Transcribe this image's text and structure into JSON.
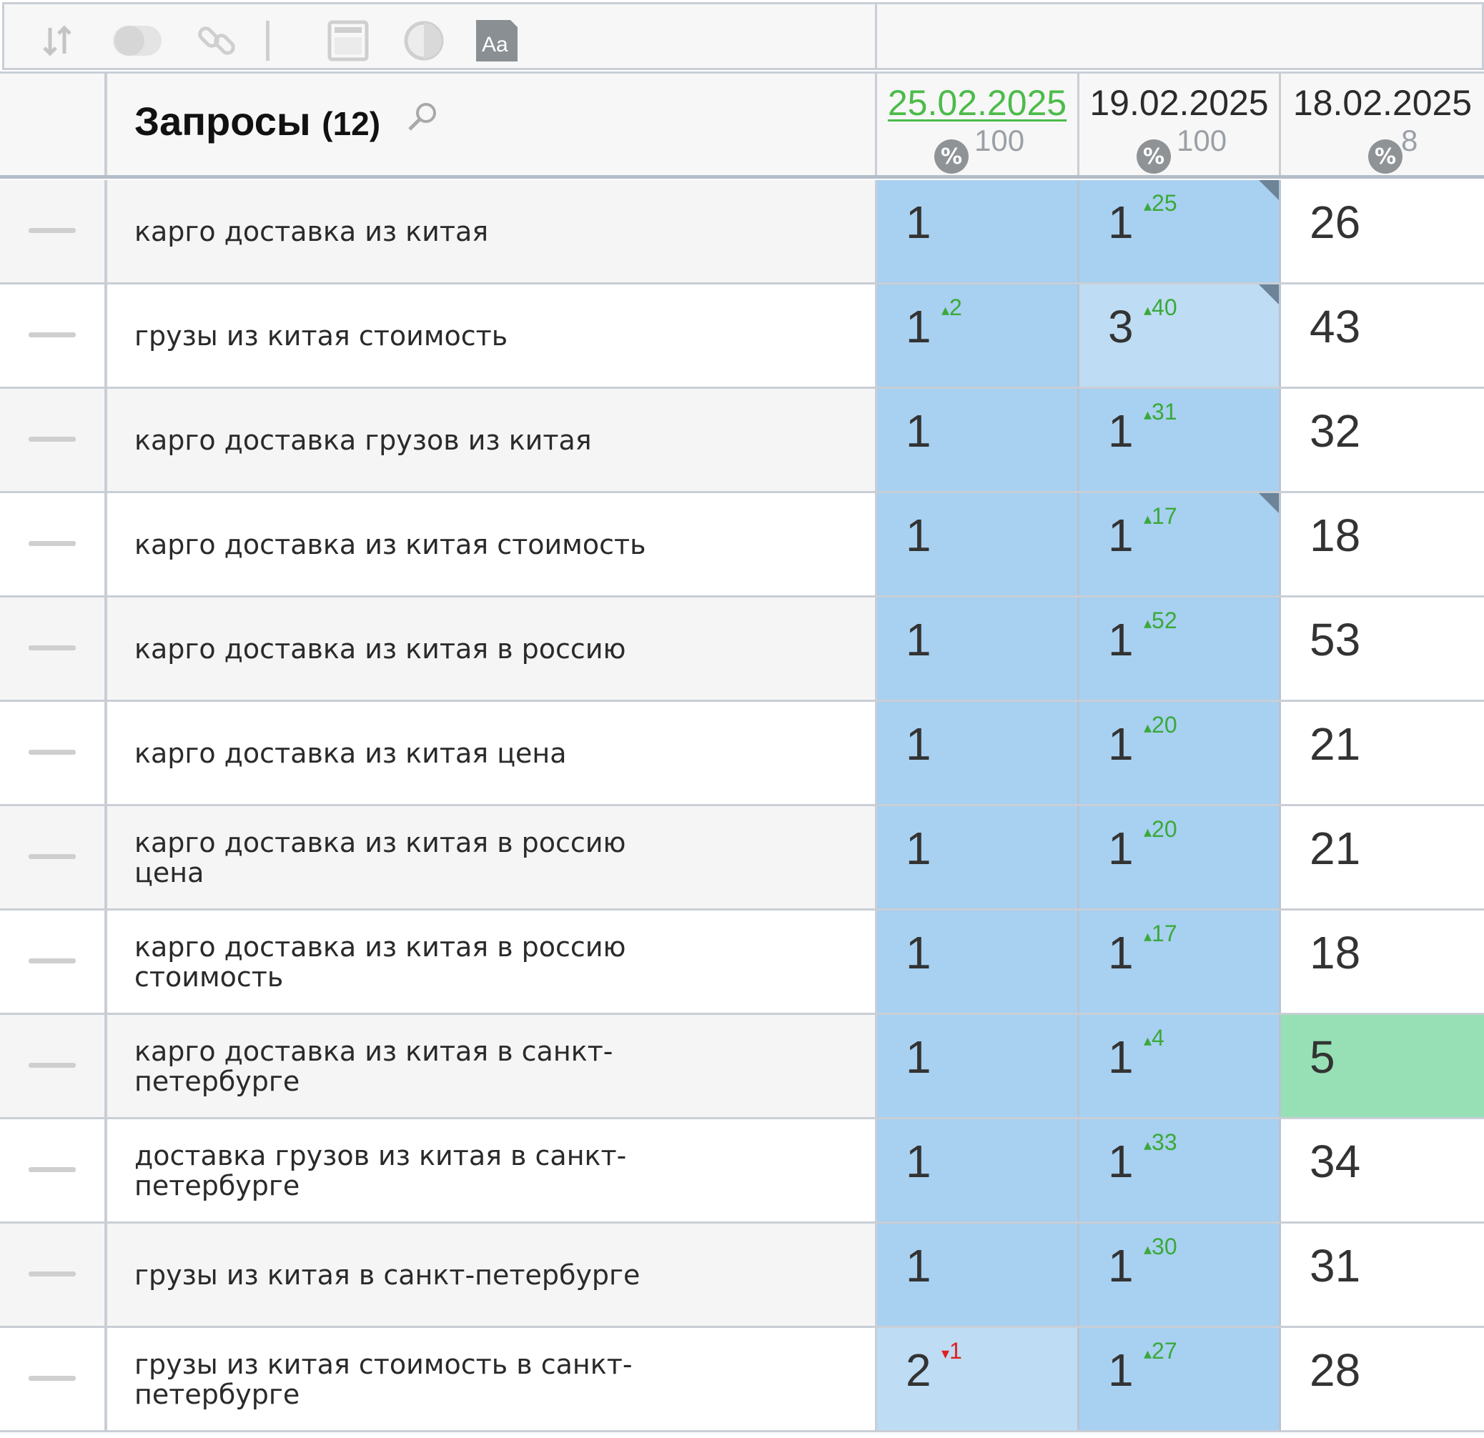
{
  "toolbar": {
    "icons": [
      "sort-icon",
      "toggle-icon",
      "link-icon",
      "separator",
      "table-view-icon",
      "contrast-icon",
      "text-style-icon"
    ],
    "text_style_label": "Aa"
  },
  "header": {
    "title": "Запросы",
    "count": "(12)",
    "dates": [
      {
        "label": "25.02.2025",
        "pct": "100",
        "active": true
      },
      {
        "label": "19.02.2025",
        "pct": "100",
        "active": false
      },
      {
        "label": "18.02.2025",
        "pct": "8",
        "active": false
      }
    ],
    "pct_symbol": "%"
  },
  "colors": {
    "top1": "#a8d0f0",
    "top3": "#bedcf3",
    "top5": "#97e0b6",
    "default": "#ffffff",
    "delta_up": "#3aa93a",
    "delta_down": "#e02020",
    "active_date": "#4cbb4a"
  },
  "rows": [
    {
      "query": "карго доставка из китая",
      "cells": [
        {
          "pos": "1",
          "delta": "",
          "tier": "top1",
          "corner": false
        },
        {
          "pos": "1",
          "delta": "25",
          "dir": "up",
          "tier": "top1",
          "corner": true
        },
        {
          "pos": "26",
          "delta": "",
          "tier": "default",
          "corner": false
        }
      ]
    },
    {
      "query": "грузы из китая стоимость",
      "cells": [
        {
          "pos": "1",
          "delta": "2",
          "dir": "up",
          "tier": "top1",
          "corner": false
        },
        {
          "pos": "3",
          "delta": "40",
          "dir": "up",
          "tier": "top3",
          "corner": true
        },
        {
          "pos": "43",
          "delta": "",
          "tier": "default",
          "corner": false
        }
      ]
    },
    {
      "query": "карго доставка грузов из китая",
      "cells": [
        {
          "pos": "1",
          "delta": "",
          "tier": "top1",
          "corner": false
        },
        {
          "pos": "1",
          "delta": "31",
          "dir": "up",
          "tier": "top1",
          "corner": false
        },
        {
          "pos": "32",
          "delta": "",
          "tier": "default",
          "corner": false
        }
      ]
    },
    {
      "query": "карго доставка из китая стоимость",
      "cells": [
        {
          "pos": "1",
          "delta": "",
          "tier": "top1",
          "corner": false
        },
        {
          "pos": "1",
          "delta": "17",
          "dir": "up",
          "tier": "top1",
          "corner": true
        },
        {
          "pos": "18",
          "delta": "",
          "tier": "default",
          "corner": false
        }
      ]
    },
    {
      "query": "карго доставка из китая в россию",
      "cells": [
        {
          "pos": "1",
          "delta": "",
          "tier": "top1",
          "corner": false
        },
        {
          "pos": "1",
          "delta": "52",
          "dir": "up",
          "tier": "top1",
          "corner": false
        },
        {
          "pos": "53",
          "delta": "",
          "tier": "default",
          "corner": false
        }
      ]
    },
    {
      "query": "карго доставка из китая цена",
      "cells": [
        {
          "pos": "1",
          "delta": "",
          "tier": "top1",
          "corner": false
        },
        {
          "pos": "1",
          "delta": "20",
          "dir": "up",
          "tier": "top1",
          "corner": false
        },
        {
          "pos": "21",
          "delta": "",
          "tier": "default",
          "corner": false
        }
      ]
    },
    {
      "query": "карго доставка из китая в россию цена",
      "cells": [
        {
          "pos": "1",
          "delta": "",
          "tier": "top1",
          "corner": false
        },
        {
          "pos": "1",
          "delta": "20",
          "dir": "up",
          "tier": "top1",
          "corner": false
        },
        {
          "pos": "21",
          "delta": "",
          "tier": "default",
          "corner": false
        }
      ]
    },
    {
      "query": "карго доставка из китая в россию стоимость",
      "cells": [
        {
          "pos": "1",
          "delta": "",
          "tier": "top1",
          "corner": false
        },
        {
          "pos": "1",
          "delta": "17",
          "dir": "up",
          "tier": "top1",
          "corner": false
        },
        {
          "pos": "18",
          "delta": "",
          "tier": "default",
          "corner": false
        }
      ]
    },
    {
      "query": "карго доставка из китая в санкт-петербурге",
      "cells": [
        {
          "pos": "1",
          "delta": "",
          "tier": "top1",
          "corner": false
        },
        {
          "pos": "1",
          "delta": "4",
          "dir": "up",
          "tier": "top1",
          "corner": false
        },
        {
          "pos": "5",
          "delta": "",
          "tier": "top5",
          "corner": false
        }
      ]
    },
    {
      "query": "доставка грузов из китая в санкт-петербурге",
      "cells": [
        {
          "pos": "1",
          "delta": "",
          "tier": "top1",
          "corner": false
        },
        {
          "pos": "1",
          "delta": "33",
          "dir": "up",
          "tier": "top1",
          "corner": false
        },
        {
          "pos": "34",
          "delta": "",
          "tier": "default",
          "corner": false
        }
      ]
    },
    {
      "query": "грузы из китая в санкт-петербурге",
      "cells": [
        {
          "pos": "1",
          "delta": "",
          "tier": "top1",
          "corner": false
        },
        {
          "pos": "1",
          "delta": "30",
          "dir": "up",
          "tier": "top1",
          "corner": false
        },
        {
          "pos": "31",
          "delta": "",
          "tier": "default",
          "corner": false
        }
      ]
    },
    {
      "query": "грузы из китая стоимость в санкт-петербурге",
      "cells": [
        {
          "pos": "2",
          "delta": "1",
          "dir": "down",
          "tier": "top3",
          "corner": false
        },
        {
          "pos": "1",
          "delta": "27",
          "dir": "up",
          "tier": "top1",
          "corner": false
        },
        {
          "pos": "28",
          "delta": "",
          "tier": "default",
          "corner": false
        }
      ]
    }
  ]
}
